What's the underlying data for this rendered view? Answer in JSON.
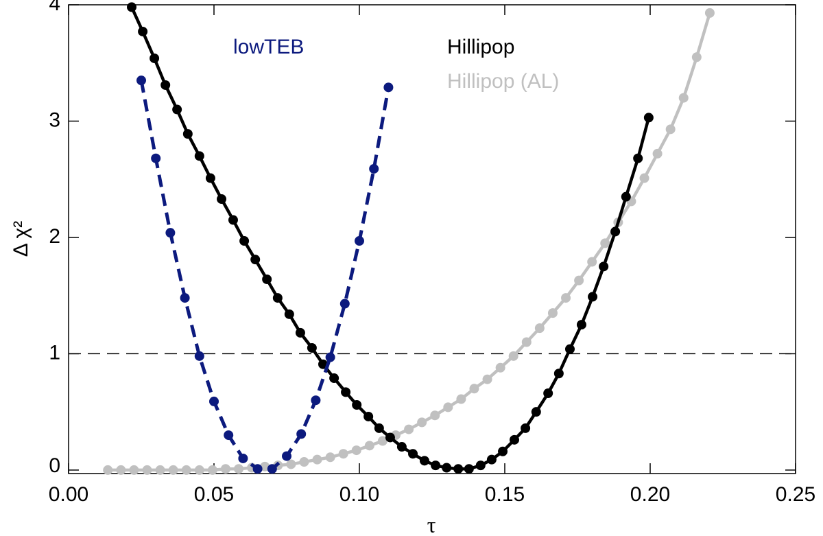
{
  "chart_data": {
    "type": "line",
    "xlabel": "τ",
    "ylabel": "Δ χ²",
    "xlim": [
      0,
      0.25
    ],
    "ylim": [
      -0.03,
      4
    ],
    "xticks": [
      {
        "value": 0,
        "label": "0.00"
      },
      {
        "value": 0.05,
        "label": "0.05"
      },
      {
        "value": 0.1,
        "label": "0.10"
      },
      {
        "value": 0.15,
        "label": "0.15"
      },
      {
        "value": 0.2,
        "label": "0.20"
      },
      {
        "value": 0.25,
        "label": "0.25"
      }
    ],
    "yticks": [
      0,
      1,
      2,
      3,
      4
    ],
    "hline": 1,
    "series": [
      {
        "name": "lowTEB",
        "color": "#0c1a7e",
        "dash": true,
        "x": [
          0.025,
          0.03,
          0.035,
          0.04,
          0.045,
          0.05,
          0.055,
          0.06,
          0.065,
          0.07,
          0.075,
          0.08,
          0.085,
          0.09,
          0.095,
          0.1,
          0.105,
          0.11
        ],
        "values": [
          3.35,
          2.68,
          2.04,
          1.48,
          0.98,
          0.59,
          0.3,
          0.1,
          0.01,
          0.01,
          0.12,
          0.31,
          0.6,
          0.97,
          1.43,
          1.97,
          2.59,
          3.29
        ]
      },
      {
        "name": "Hillipop",
        "color": "#000000",
        "dash": false,
        "x": [
          0.0217,
          0.0255,
          0.0295,
          0.0333,
          0.0373,
          0.041,
          0.045,
          0.0488,
          0.0526,
          0.0566,
          0.0604,
          0.0642,
          0.0682,
          0.0719,
          0.0759,
          0.0797,
          0.0837,
          0.0875,
          0.0913,
          0.0953,
          0.0991,
          0.1031,
          0.1068,
          0.1106,
          0.1146,
          0.1184,
          0.1224,
          0.1262,
          0.13,
          0.134,
          0.1377,
          0.1417,
          0.1455,
          0.1493,
          0.1533,
          0.1571,
          0.1608,
          0.1649,
          0.1686,
          0.1724,
          0.1764,
          0.1802,
          0.184,
          0.188,
          0.1917,
          0.1958,
          0.1995
        ],
        "values": [
          3.98,
          3.77,
          3.54,
          3.31,
          3.1,
          2.89,
          2.7,
          2.51,
          2.33,
          2.15,
          1.97,
          1.81,
          1.64,
          1.48,
          1.34,
          1.18,
          1.05,
          0.91,
          0.79,
          0.67,
          0.56,
          0.46,
          0.36,
          0.28,
          0.2,
          0.14,
          0.08,
          0.04,
          0.02,
          0.01,
          0.01,
          0.04,
          0.09,
          0.16,
          0.26,
          0.36,
          0.5,
          0.66,
          0.83,
          1.04,
          1.25,
          1.49,
          1.75,
          2.05,
          2.35,
          2.68,
          3.03
        ]
      },
      {
        "name": "Hillipop (AL)",
        "color": "#c0c0c0",
        "dash": false,
        "x": [
          0.0135,
          0.018,
          0.0225,
          0.027,
          0.0315,
          0.036,
          0.0405,
          0.045,
          0.0495,
          0.054,
          0.0585,
          0.063,
          0.0675,
          0.072,
          0.0765,
          0.081,
          0.0855,
          0.09,
          0.0945,
          0.099,
          0.1035,
          0.108,
          0.1125,
          0.117,
          0.1215,
          0.126,
          0.1305,
          0.135,
          0.1395,
          0.144,
          0.1485,
          0.153,
          0.1575,
          0.162,
          0.1665,
          0.171,
          0.1755,
          0.18,
          0.1845,
          0.189,
          0.1935,
          0.198,
          0.2025,
          0.207,
          0.2115,
          0.216,
          0.2205
        ],
        "values": [
          0,
          0,
          0,
          0,
          0,
          0,
          0,
          0,
          0,
          0.01,
          0.01,
          0.02,
          0.03,
          0.04,
          0.05,
          0.07,
          0.09,
          0.11,
          0.14,
          0.17,
          0.21,
          0.25,
          0.3,
          0.35,
          0.41,
          0.47,
          0.54,
          0.61,
          0.7,
          0.78,
          0.88,
          0.98,
          1.1,
          1.22,
          1.35,
          1.48,
          1.63,
          1.79,
          1.95,
          2.13,
          2.31,
          2.51,
          2.72,
          2.93,
          3.2,
          3.55,
          3.93
        ]
      }
    ]
  }
}
